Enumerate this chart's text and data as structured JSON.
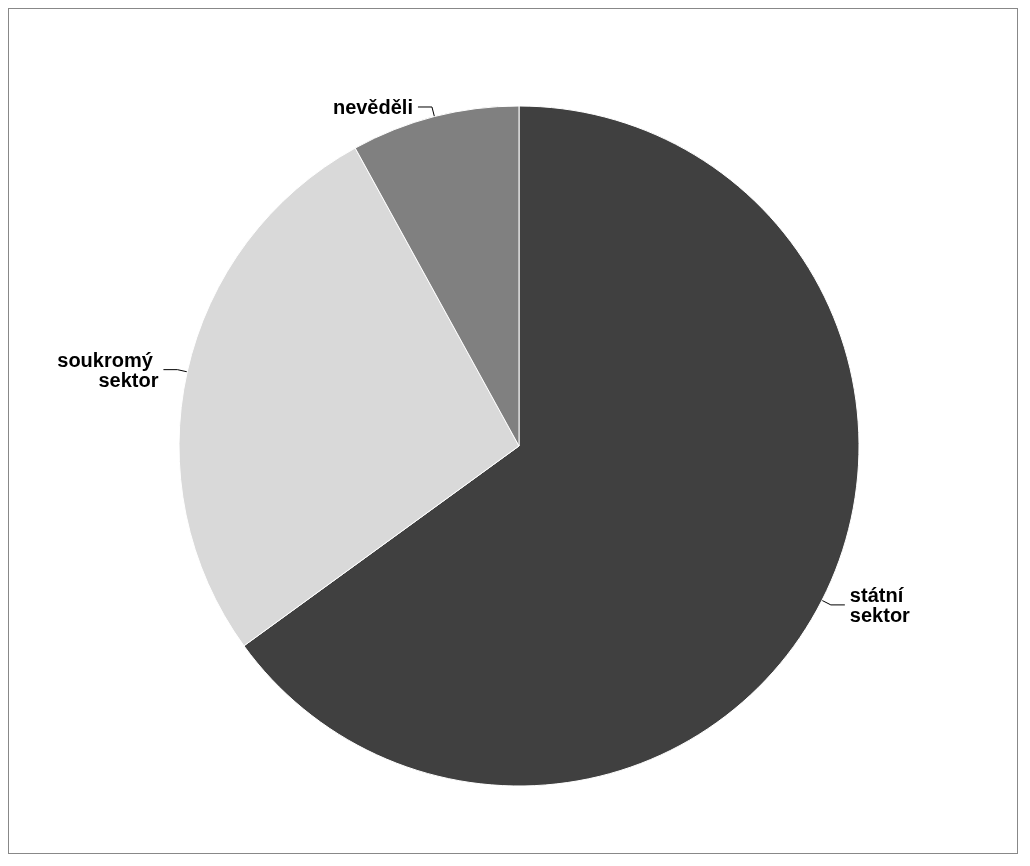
{
  "chart_data": {
    "type": "pie",
    "categories": [
      "státní sektor",
      "soukromý sektor",
      "nevěděli"
    ],
    "values": [
      65,
      27,
      8
    ],
    "colors": [
      "#404040",
      "#d9d9d9",
      "#808080"
    ],
    "legend": false
  }
}
